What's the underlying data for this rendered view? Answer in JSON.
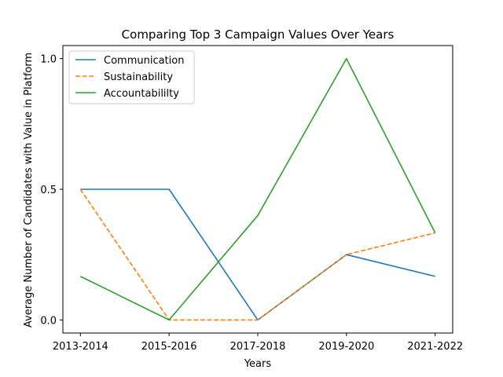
{
  "chart_data": {
    "type": "line",
    "title": "Comparing Top 3 Campaign Values Over Years",
    "xlabel": "Years",
    "ylabel": "Average Number of Candidates with Value in Platform",
    "categories": [
      "2013-2014",
      "2015-2016",
      "2017-2018",
      "2019-2020",
      "2021-2022"
    ],
    "yticks": [
      "0.0",
      "0.5",
      "1.0"
    ],
    "ylim": [
      -0.05,
      1.05
    ],
    "grid": false,
    "legend_position": "top-left",
    "series": [
      {
        "name": "Communication",
        "values": [
          0.5,
          0.5,
          0.0,
          0.25,
          0.1667
        ],
        "color": "#1f77b4",
        "style": "solid"
      },
      {
        "name": "Sustainability",
        "values": [
          0.5,
          0.0,
          0.0,
          0.25,
          0.3333
        ],
        "color": "#ff7f0e",
        "style": "dashed"
      },
      {
        "name": "Accountabililty",
        "values": [
          0.1667,
          0.0,
          0.4,
          1.0,
          0.3333
        ],
        "color": "#2ca02c",
        "style": "solid"
      }
    ]
  }
}
